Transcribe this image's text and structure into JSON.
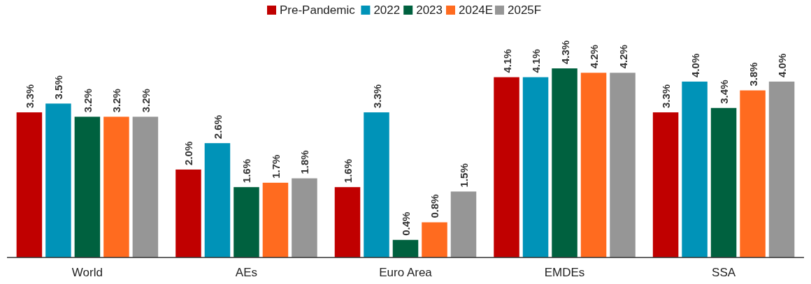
{
  "chart_data": {
    "type": "bar",
    "categories": [
      "World",
      "AEs",
      "Euro Area",
      "EMDEs",
      "SSA"
    ],
    "series": [
      {
        "name": "Pre-Pandemic",
        "color": "#c00000",
        "values": [
          3.3,
          2.0,
          1.6,
          4.1,
          3.3
        ],
        "value_labels": [
          "3.3%",
          "2.0%",
          "1.6%",
          "4.1%",
          "3.3%"
        ]
      },
      {
        "name": "2022",
        "color": "#0093b8",
        "values": [
          3.5,
          2.6,
          3.3,
          4.1,
          4.0
        ],
        "value_labels": [
          "3.5%",
          "2.6%",
          "3.3%",
          "4.1%",
          "4.0%"
        ]
      },
      {
        "name": "2023",
        "color": "#00613f",
        "values": [
          3.2,
          1.6,
          0.4,
          4.3,
          3.4
        ],
        "value_labels": [
          "3.2%",
          "1.6%",
          "0.4%",
          "4.3%",
          "3.4%"
        ]
      },
      {
        "name": "2024E",
        "color": "#ff6b1f",
        "values": [
          3.2,
          1.7,
          0.8,
          4.2,
          3.8
        ],
        "value_labels": [
          "3.2%",
          "1.7%",
          "0.8%",
          "4.2%",
          "3.8%"
        ]
      },
      {
        "name": "2025F",
        "color": "#969696",
        "values": [
          3.2,
          1.8,
          1.5,
          4.2,
          4.0
        ],
        "value_labels": [
          "3.2%",
          "1.8%",
          "1.5%",
          "4.2%",
          "4.0%"
        ]
      }
    ],
    "legend": "top"
  }
}
